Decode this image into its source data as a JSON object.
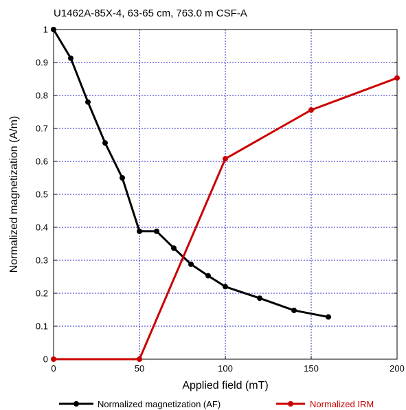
{
  "chart_data": {
    "type": "line",
    "title": "U1462A-85X-4, 63-65 cm, 763.0 m CSF-A",
    "xlabel": "Applied field (mT)",
    "ylabel": "Normalized magnetization (A/m)",
    "xlim": [
      0,
      200
    ],
    "ylim": [
      0,
      1
    ],
    "x_ticks": [
      0,
      50,
      100,
      150,
      200
    ],
    "y_ticks": [
      0,
      0.1,
      0.2,
      0.3,
      0.4,
      0.5,
      0.6,
      0.7,
      0.8,
      0.9,
      1
    ],
    "x_tick_labels": [
      "0",
      "50",
      "100",
      "150",
      "200"
    ],
    "y_tick_labels": [
      "0",
      "0.1",
      "0.2",
      "0.3",
      "0.4",
      "0.5",
      "0.6",
      "0.7",
      "0.8",
      "0.9",
      "1"
    ],
    "grid": true,
    "legend_position": "bottom",
    "series": [
      {
        "name": "Normalized magnetization (AF)",
        "color": "#000000",
        "x": [
          0,
          10,
          20,
          30,
          40,
          50,
          60,
          70,
          80,
          90,
          100,
          120,
          140,
          160
        ],
        "y": [
          1.0,
          0.913,
          0.78,
          0.656,
          0.55,
          0.388,
          0.388,
          0.337,
          0.288,
          0.253,
          0.22,
          0.185,
          0.148,
          0.128
        ]
      },
      {
        "name": "Normalized IRM",
        "color": "#cc0000",
        "x": [
          0,
          50,
          100,
          150,
          200
        ],
        "y": [
          0,
          0,
          0.608,
          0.756,
          0.853
        ]
      }
    ]
  }
}
